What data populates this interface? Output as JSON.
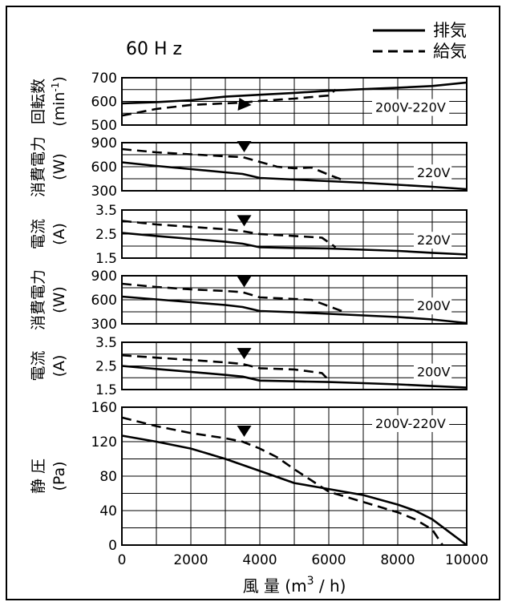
{
  "chart_data": {
    "type": "line",
    "frequency_label": "60 H z",
    "legend": [
      {
        "label": "排気",
        "style": "solid"
      },
      {
        "label": "給気",
        "style": "dashed"
      }
    ],
    "x_axis": {
      "label_main": "風 量 (m",
      "label_sup": "3",
      "label_tail": " / h)",
      "range": [
        0,
        10000
      ],
      "ticks": [
        "0",
        "2000",
        "4000",
        "6000",
        "8000",
        "10000"
      ]
    },
    "panels": [
      {
        "id": "rpm",
        "ylabel_line1": "回転数",
        "ylabel_line2_main": "(min",
        "ylabel_line2_sup": "-1",
        "ylabel_line2_tail": ")",
        "ylim": [
          500,
          700
        ],
        "yticks": [
          "500",
          "600",
          "700"
        ],
        "condition": "200V-220V",
        "series": [
          {
            "name": "排気",
            "style": "solid",
            "x": [
              0,
              1000,
              2000,
              3000,
              4000,
              5000,
              6000,
              7000,
              8000,
              9000,
              10000
            ],
            "y": [
              592,
              597,
              605,
              620,
              628,
              636,
              645,
              652,
              658,
              665,
              680
            ]
          },
          {
            "name": "給気",
            "style": "dashed",
            "x": [
              0,
              1000,
              2000,
              3000,
              3500,
              4000,
              5000,
              6000,
              6200
            ],
            "y": [
              540,
              568,
              585,
              592,
              595,
              602,
              612,
              625,
              650
            ]
          }
        ]
      },
      {
        "id": "power220",
        "ylabel_line1": "消費電力",
        "ylabel_line2_main": "(W)",
        "ylim": [
          300,
          900
        ],
        "yticks": [
          "300",
          "600",
          "900"
        ],
        "condition": "220V",
        "series": [
          {
            "name": "排気",
            "style": "solid",
            "x": [
              0,
              1000,
              2000,
              3000,
              3500,
              4000,
              5000,
              6000,
              7000,
              8000,
              9000,
              10000
            ],
            "y": [
              655,
              610,
              570,
              530,
              510,
              460,
              440,
              420,
              400,
              375,
              350,
              320
            ]
          },
          {
            "name": "給気",
            "style": "dashed",
            "x": [
              0,
              1000,
              2000,
              3000,
              3500,
              4000,
              4500,
              5000,
              5500,
              6000,
              6500
            ],
            "y": [
              820,
              780,
              755,
              730,
              720,
              660,
              600,
              580,
              590,
              500,
              420
            ]
          }
        ]
      },
      {
        "id": "current220",
        "ylabel_line1": "電流",
        "ylabel_line2_main": "(A)",
        "ylim": [
          1.5,
          3.5
        ],
        "yticks": [
          "1.5",
          "2.5",
          "3.5"
        ],
        "condition": "220V",
        "series": [
          {
            "name": "排気",
            "style": "solid",
            "x": [
              0,
              1000,
              2000,
              3000,
              3500,
              4000,
              5000,
              6000,
              7000,
              8000,
              9000,
              10000
            ],
            "y": [
              2.55,
              2.42,
              2.3,
              2.18,
              2.1,
              1.95,
              1.92,
              1.9,
              1.85,
              1.8,
              1.72,
              1.65
            ]
          },
          {
            "name": "給気",
            "style": "dashed",
            "x": [
              0,
              1000,
              2000,
              3000,
              3500,
              4000,
              5000,
              5800,
              6200
            ],
            "y": [
              3.05,
              2.9,
              2.8,
              2.7,
              2.62,
              2.5,
              2.42,
              2.35,
              1.95
            ]
          }
        ]
      },
      {
        "id": "power200",
        "ylabel_line1": "消費電力",
        "ylabel_line2_main": "(W)",
        "ylim": [
          300,
          900
        ],
        "yticks": [
          "300",
          "600",
          "900"
        ],
        "condition": "200V",
        "series": [
          {
            "name": "排気",
            "style": "solid",
            "x": [
              0,
              1000,
              2000,
              3000,
              3500,
              4000,
              5000,
              6000,
              7000,
              8000,
              9000,
              10000
            ],
            "y": [
              640,
              605,
              570,
              535,
              510,
              460,
              445,
              425,
              405,
              385,
              355,
              310
            ]
          },
          {
            "name": "給気",
            "style": "dashed",
            "x": [
              0,
              1000,
              2000,
              3000,
              3500,
              4000,
              5000,
              5500,
              6000,
              6500
            ],
            "y": [
              800,
              760,
              730,
              710,
              695,
              630,
              610,
              600,
              520,
              440
            ]
          }
        ]
      },
      {
        "id": "current200",
        "ylabel_line1": "電流",
        "ylabel_line2_main": "(A)",
        "ylim": [
          1.5,
          3.5
        ],
        "yticks": [
          "1.5",
          "2.5",
          "3.5"
        ],
        "condition": "200V",
        "series": [
          {
            "name": "排気",
            "style": "solid",
            "x": [
              0,
              1000,
              2000,
              3000,
              3500,
              4000,
              5000,
              6000,
              7000,
              8000,
              9000,
              10000
            ],
            "y": [
              2.5,
              2.37,
              2.25,
              2.12,
              2.05,
              1.88,
              1.85,
              1.82,
              1.77,
              1.72,
              1.65,
              1.58
            ]
          },
          {
            "name": "給気",
            "style": "dashed",
            "x": [
              0,
              1000,
              2000,
              3000,
              3500,
              4000,
              5000,
              5800,
              6000
            ],
            "y": [
              2.95,
              2.85,
              2.75,
              2.65,
              2.58,
              2.4,
              2.35,
              2.2,
              1.9
            ]
          }
        ]
      },
      {
        "id": "static",
        "ylabel_line1": "静 圧",
        "ylabel_line2_main": "(Pa)",
        "ylim": [
          0,
          160
        ],
        "yticks": [
          "0",
          "40",
          "80",
          "120",
          "160"
        ],
        "condition": "200V-220V",
        "series": [
          {
            "name": "排気",
            "style": "solid",
            "x": [
              0,
              1000,
              2000,
              3000,
              4000,
              5000,
              6000,
              7000,
              8000,
              8500,
              9000,
              9500,
              10000
            ],
            "y": [
              127,
              120,
              112,
              100,
              86,
              72,
              65,
              58,
              47,
              40,
              30,
              15,
              0
            ]
          },
          {
            "name": "給気",
            "style": "dashed",
            "x": [
              0,
              1000,
              2000,
              3000,
              3500,
              4000,
              4500,
              5000,
              5500,
              6000,
              7000,
              8000,
              8500,
              9000,
              9300
            ],
            "y": [
              148,
              138,
              130,
              124,
              120,
              112,
              102,
              88,
              75,
              62,
              50,
              38,
              30,
              18,
              0
            ]
          }
        ]
      }
    ]
  }
}
